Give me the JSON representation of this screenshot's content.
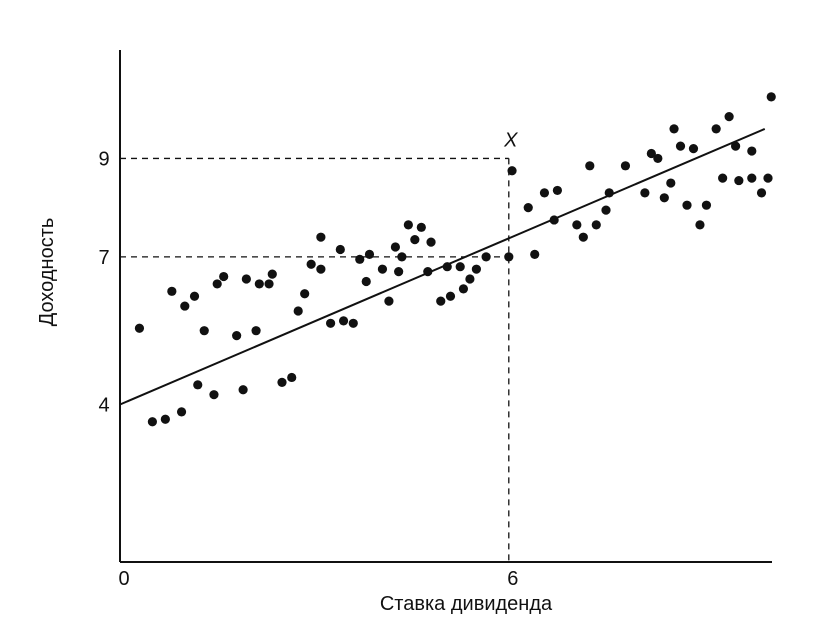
{
  "chart_data": {
    "type": "scatter",
    "xlabel": "Ставка дивиденда",
    "ylabel": "Доходность",
    "xlim": [
      0,
      10
    ],
    "ylim": [
      0.8,
      11
    ],
    "x_ticks": [
      {
        "value": 0,
        "label": "0"
      },
      {
        "value": 6,
        "label": "6"
      }
    ],
    "y_ticks": [
      {
        "value": 4,
        "label": "4"
      },
      {
        "value": 7,
        "label": "7"
      },
      {
        "value": 9,
        "label": "9"
      }
    ],
    "grid": false,
    "legend": "none",
    "annotation": {
      "label": "X",
      "x": 6,
      "y": 9
    },
    "fit_line": {
      "x": [
        0,
        9.95
      ],
      "y": [
        4.0,
        9.6
      ]
    },
    "reference_lines": [
      {
        "x": 6,
        "y": 9
      },
      {
        "x": 6,
        "y": 7
      }
    ],
    "series": [
      {
        "points": [
          [
            0.3,
            5.55
          ],
          [
            0.5,
            3.65
          ],
          [
            0.7,
            3.7
          ],
          [
            0.8,
            6.3
          ],
          [
            0.95,
            3.85
          ],
          [
            1.0,
            6.0
          ],
          [
            1.15,
            6.2
          ],
          [
            1.2,
            4.4
          ],
          [
            1.3,
            5.5
          ],
          [
            1.45,
            4.2
          ],
          [
            1.5,
            6.45
          ],
          [
            1.6,
            6.6
          ],
          [
            1.8,
            5.4
          ],
          [
            1.9,
            4.3
          ],
          [
            1.95,
            6.55
          ],
          [
            2.1,
            5.5
          ],
          [
            2.15,
            6.45
          ],
          [
            2.3,
            6.45
          ],
          [
            2.35,
            6.65
          ],
          [
            2.5,
            4.45
          ],
          [
            2.65,
            4.55
          ],
          [
            2.75,
            5.9
          ],
          [
            2.85,
            6.25
          ],
          [
            2.95,
            6.85
          ],
          [
            3.1,
            6.75
          ],
          [
            3.1,
            7.4
          ],
          [
            3.25,
            5.65
          ],
          [
            3.4,
            7.15
          ],
          [
            3.45,
            5.7
          ],
          [
            3.6,
            5.65
          ],
          [
            3.7,
            6.95
          ],
          [
            3.8,
            6.5
          ],
          [
            3.85,
            7.05
          ],
          [
            4.05,
            6.75
          ],
          [
            4.15,
            6.1
          ],
          [
            4.25,
            7.2
          ],
          [
            4.3,
            6.7
          ],
          [
            4.35,
            7.0
          ],
          [
            4.45,
            7.65
          ],
          [
            4.55,
            7.35
          ],
          [
            4.65,
            7.6
          ],
          [
            4.75,
            6.7
          ],
          [
            4.8,
            7.3
          ],
          [
            4.95,
            6.1
          ],
          [
            5.05,
            6.8
          ],
          [
            5.1,
            6.2
          ],
          [
            5.25,
            6.8
          ],
          [
            5.3,
            6.35
          ],
          [
            5.4,
            6.55
          ],
          [
            5.5,
            6.75
          ],
          [
            5.65,
            7.0
          ],
          [
            6.0,
            7.0
          ],
          [
            6.05,
            8.75
          ],
          [
            6.3,
            8.0
          ],
          [
            6.4,
            7.05
          ],
          [
            6.55,
            8.3
          ],
          [
            6.7,
            7.75
          ],
          [
            6.75,
            8.35
          ],
          [
            7.05,
            7.65
          ],
          [
            7.15,
            7.4
          ],
          [
            7.25,
            8.85
          ],
          [
            7.35,
            7.65
          ],
          [
            7.5,
            7.95
          ],
          [
            7.55,
            8.3
          ],
          [
            7.8,
            8.85
          ],
          [
            8.1,
            8.3
          ],
          [
            8.2,
            9.1
          ],
          [
            8.3,
            9.0
          ],
          [
            8.4,
            8.2
          ],
          [
            8.5,
            8.5
          ],
          [
            8.55,
            9.6
          ],
          [
            8.65,
            9.25
          ],
          [
            8.75,
            8.05
          ],
          [
            8.85,
            9.2
          ],
          [
            8.95,
            7.65
          ],
          [
            9.05,
            8.05
          ],
          [
            9.2,
            9.6
          ],
          [
            9.3,
            8.6
          ],
          [
            9.4,
            9.85
          ],
          [
            9.5,
            9.25
          ],
          [
            9.55,
            8.55
          ],
          [
            9.75,
            9.15
          ],
          [
            9.75,
            8.6
          ],
          [
            9.9,
            8.3
          ],
          [
            10.0,
            8.6
          ],
          [
            10.05,
            10.25
          ]
        ]
      }
    ]
  }
}
